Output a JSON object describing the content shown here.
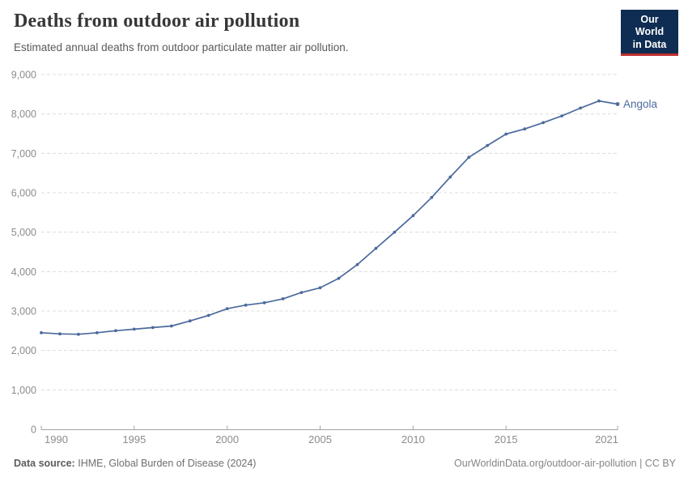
{
  "logo": {
    "line1": "Our World",
    "line2": "in Data",
    "bg_color": "#0F2D52",
    "accent_color": "#BE2F30"
  },
  "footer": {
    "source_label": "Data source:",
    "source_text": "IHME, Global Burden of Disease (2024)",
    "attribution": "OurWorldinData.org/outdoor-air-pollution | CC BY"
  },
  "chart_data": {
    "type": "line",
    "title": "Deaths from outdoor air pollution",
    "subtitle": "Estimated annual deaths from outdoor particulate matter air pollution.",
    "xlabel": "",
    "ylabel": "",
    "xlim": [
      1990,
      2021
    ],
    "ylim": [
      0,
      9000
    ],
    "grid": "horizontal-dashed",
    "legend_position": "end-of-line-label",
    "yticks": [
      {
        "value": 0,
        "label": "0"
      },
      {
        "value": 1000,
        "label": "1,000"
      },
      {
        "value": 2000,
        "label": "2,000"
      },
      {
        "value": 3000,
        "label": "3,000"
      },
      {
        "value": 4000,
        "label": "4,000"
      },
      {
        "value": 5000,
        "label": "5,000"
      },
      {
        "value": 6000,
        "label": "6,000"
      },
      {
        "value": 7000,
        "label": "7,000"
      },
      {
        "value": 8000,
        "label": "8,000"
      },
      {
        "value": 9000,
        "label": "9,000"
      }
    ],
    "xticks": [
      {
        "value": 1990,
        "label": "1990"
      },
      {
        "value": 1995,
        "label": "1995"
      },
      {
        "value": 2000,
        "label": "2000"
      },
      {
        "value": 2005,
        "label": "2005"
      },
      {
        "value": 2010,
        "label": "2010"
      },
      {
        "value": 2015,
        "label": "2015"
      },
      {
        "value": 2021,
        "label": "2021"
      }
    ],
    "series": [
      {
        "name": "Angola",
        "color": "#4C6A9C",
        "x": [
          1990,
          1991,
          1992,
          1993,
          1994,
          1995,
          1996,
          1997,
          1998,
          1999,
          2000,
          2001,
          2002,
          2003,
          2004,
          2005,
          2006,
          2007,
          2008,
          2009,
          2010,
          2011,
          2012,
          2013,
          2014,
          2015,
          2016,
          2017,
          2018,
          2019,
          2020,
          2021
        ],
        "values": [
          2450,
          2420,
          2410,
          2450,
          2500,
          2540,
          2580,
          2620,
          2750,
          2890,
          3060,
          3150,
          3210,
          3310,
          3470,
          3590,
          3830,
          4180,
          4590,
          5000,
          5420,
          5880,
          6400,
          6900,
          7200,
          7490,
          7620,
          7780,
          7950,
          8150,
          8330,
          8250
        ]
      }
    ]
  }
}
